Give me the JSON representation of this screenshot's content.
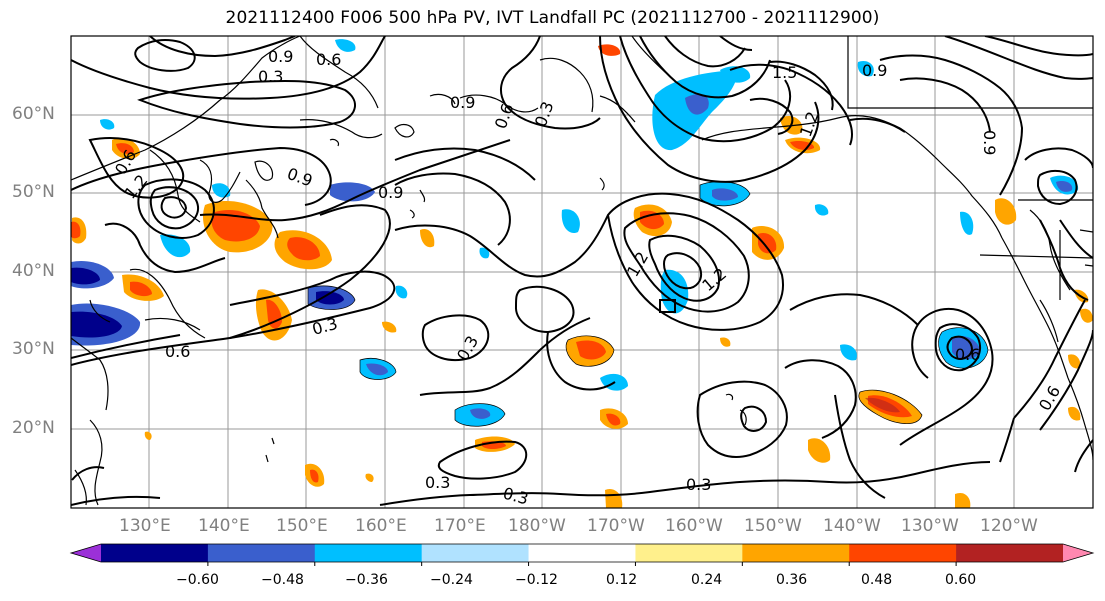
{
  "title": "2021112400 F006 500 hPa PV, IVT Landfall PC (2021112700 - 2021112900)",
  "lat_labels": [
    "60°N",
    "50°N",
    "40°N",
    "30°N",
    "20°N"
  ],
  "lon_labels": [
    "130°E",
    "140°E",
    "150°E",
    "160°E",
    "170°E",
    "180°W",
    "170°W",
    "160°W",
    "150°W",
    "140°W",
    "130°W",
    "120°W"
  ],
  "colorbar": {
    "colors": [
      "#9b30d8",
      "#00008b",
      "#3a5fcd",
      "#00bfff",
      "#b0e2ff",
      "#ffffff",
      "#fff08c",
      "#ffa500",
      "#ff4500",
      "#b22222",
      "#ff88b0"
    ],
    "ticks": [
      "−0.60",
      "−0.48",
      "−0.36",
      "−0.24",
      "−0.12",
      "0.12",
      "0.24",
      "0.36",
      "0.48",
      "0.60"
    ]
  },
  "contour_labels": [
    "0.9",
    "0.6",
    "0.3",
    "0.9",
    "0.3",
    "0.6",
    "1.5",
    "0.9",
    "1.2",
    "0.9",
    "0.9",
    "1.2",
    "1.2",
    "0.6",
    "0.6",
    "0.3",
    "0.3",
    "0.3",
    "0.3",
    "0.3",
    "0.6",
    "0.6",
    "1.2",
    "0.9"
  ]
}
